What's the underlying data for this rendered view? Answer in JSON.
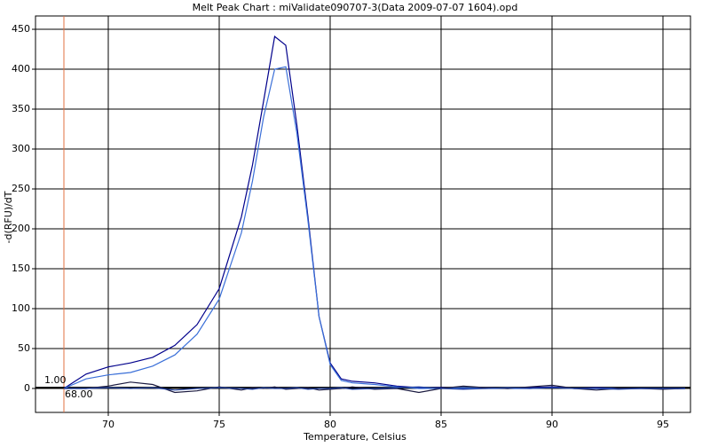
{
  "chart_data": {
    "type": "line",
    "title": "Melt Peak Chart : miValidate090707-3(Data 2009-07-07 1604).opd",
    "x_label": "Temperature, Celsius",
    "y_label": "-d(RFU)/dT",
    "x": [
      68,
      69,
      70,
      71,
      72,
      73,
      74,
      75,
      76,
      76.5,
      77,
      77.5,
      78,
      78.5,
      79,
      79.5,
      80,
      80.5,
      81,
      82,
      83,
      84,
      85,
      86,
      87,
      88,
      89,
      90,
      91,
      92,
      93,
      94,
      95,
      96
    ],
    "series": [
      {
        "color": "#00008b",
        "values": [
          0,
          18,
          27,
          32,
          39,
          54,
          80,
          125,
          215,
          280,
          360,
          441,
          430,
          330,
          215,
          90,
          32,
          12,
          9,
          7,
          3,
          1,
          1,
          0,
          1,
          0,
          1,
          2,
          0,
          1,
          0,
          0,
          0,
          0
        ]
      },
      {
        "color": "#3a6fd8",
        "values": [
          0,
          12,
          17,
          20,
          28,
          42,
          68,
          112,
          195,
          260,
          340,
          400,
          403,
          320,
          210,
          90,
          30,
          10,
          7,
          5,
          2,
          0,
          0,
          1,
          0,
          0,
          0,
          1,
          0,
          0,
          0,
          0,
          0,
          0
        ]
      },
      {
        "color": "#1a1a40",
        "values": [
          0,
          0,
          3,
          8,
          5,
          -5,
          -3,
          2,
          -2,
          1,
          0,
          2,
          -1,
          0,
          1,
          -2,
          -1,
          0,
          2,
          -1,
          0,
          -5,
          0,
          3,
          1,
          0,
          2,
          4,
          0,
          -2,
          0,
          0,
          -1,
          0
        ]
      },
      {
        "color": "#2040a0",
        "values": [
          0,
          0,
          1,
          0,
          1,
          -2,
          0,
          1,
          0,
          -1,
          1,
          0,
          0,
          1,
          -1,
          0,
          0,
          1,
          -1,
          0,
          1,
          2,
          0,
          -1,
          0,
          1,
          0,
          1,
          0,
          0,
          -1,
          0,
          0,
          0
        ]
      }
    ],
    "xlim": [
      66.72,
      96.24
    ],
    "ylim": [
      -30,
      466.7
    ],
    "xticks": [
      70,
      75,
      80,
      85,
      90,
      95
    ],
    "yticks": [
      0,
      50,
      100,
      150,
      200,
      250,
      300,
      350,
      400,
      450
    ],
    "grid": true,
    "threshold": {
      "x": 68,
      "x_label": "68.00",
      "y": 1,
      "y_label": "1.00"
    }
  }
}
